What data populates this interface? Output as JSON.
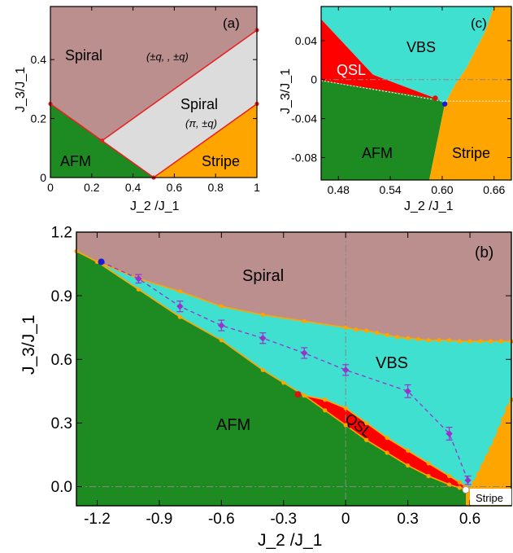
{
  "colors": {
    "spiral": "#bc8f8f",
    "spiral_pi": "#dcdcdc",
    "afm": "#1e8b22",
    "stripe": "#ffa500",
    "vbs": "#40e0d0",
    "qsl": "#ff0000",
    "boundary": "#ffa500",
    "boundary_a": "#e82020",
    "dashed_line": "#9932cc",
    "blue_point": "#1a1adc",
    "red_point": "#e01010",
    "guide": "#888888"
  },
  "chart_data": [
    {
      "panel": "(a)",
      "type": "area",
      "xlabel": "J_2 /J_1",
      "ylabel": "J_3/J_1",
      "xlim": [
        0,
        1
      ],
      "ylim": [
        0,
        0.58
      ],
      "xticks": [
        0,
        0.2,
        0.4,
        0.6,
        0.8,
        1
      ],
      "xtick_labels": [
        "0",
        "0.2",
        "0.4",
        "0.6",
        "0.8",
        "1"
      ],
      "yticks": [
        0,
        0.2,
        0.4
      ],
      "ytick_labels": [
        "0",
        "0.2",
        "0.4"
      ],
      "regions": [
        {
          "name": "spiral",
          "label": "Spiral",
          "sub": "(±q, , ±q)",
          "color_key": "spiral",
          "polygon": [
            [
              0,
              0.58
            ],
            [
              1,
              0.58
            ],
            [
              1,
              0.5
            ],
            [
              0.25,
              0.125
            ],
            [
              0,
              0.25
            ]
          ]
        },
        {
          "name": "spiral-pi",
          "label": "Spiral",
          "sub": "(π, ±q)",
          "color_key": "spiral_pi",
          "polygon": [
            [
              0.25,
              0.125
            ],
            [
              1,
              0.5
            ],
            [
              1,
              0.25
            ],
            [
              0.5,
              0
            ]
          ]
        },
        {
          "name": "afm",
          "label": "AFM",
          "color_key": "afm",
          "polygon": [
            [
              0,
              0
            ],
            [
              0.5,
              0
            ],
            [
              0.25,
              0.125
            ],
            [
              0,
              0.25
            ]
          ]
        },
        {
          "name": "stripe",
          "label": "Stripe",
          "color_key": "stripe",
          "polygon": [
            [
              0.5,
              0
            ],
            [
              1,
              0
            ],
            [
              1,
              0.25
            ]
          ]
        }
      ],
      "boundaries": [
        {
          "x": [
            0,
            0.25,
            1
          ],
          "y": [
            0.25,
            0.125,
            0.5
          ]
        },
        {
          "x": [
            0.25,
            0.5,
            1
          ],
          "y": [
            0.125,
            0,
            0.25
          ]
        }
      ],
      "points": [
        {
          "x": 0,
          "y": 0.25
        },
        {
          "x": 0.25,
          "y": 0.125
        },
        {
          "x": 0.5,
          "y": 0
        },
        {
          "x": 1,
          "y": 0.5
        },
        {
          "x": 1,
          "y": 0.25
        }
      ]
    },
    {
      "panel": "(c)",
      "type": "area",
      "xlabel": "J_2 /J_1",
      "ylabel": "J_3/J_1",
      "xlim": [
        0.46,
        0.68
      ],
      "ylim": [
        -0.103,
        0.075
      ],
      "xticks": [
        0.48,
        0.54,
        0.6,
        0.66
      ],
      "xtick_labels": [
        "0.48",
        "0.54",
        "0.60",
        "0.66"
      ],
      "yticks": [
        0.04,
        0,
        -0.04,
        -0.08
      ],
      "ytick_labels": [
        "0.04",
        "0",
        "-0.04",
        "-0.08"
      ],
      "regions": [
        {
          "name": "vbs",
          "label": "VBS",
          "color_key": "vbs",
          "polygon": [
            [
              0.46,
              0.075
            ],
            [
              0.66,
              0.075
            ],
            [
              0.65,
              0.05
            ],
            [
              0.628,
              0.012
            ],
            [
              0.615,
              -0.005
            ],
            [
              0.603,
              -0.025
            ],
            [
              0.595,
              -0.02
            ],
            [
              0.58,
              -0.015
            ],
            [
              0.52,
              0.005
            ],
            [
              0.46,
              0.062
            ]
          ]
        },
        {
          "name": "qsl",
          "label": "QSL",
          "color_key": "qsl",
          "polygon": [
            [
              0.46,
              0.062
            ],
            [
              0.52,
              0.005
            ],
            [
              0.58,
              -0.015
            ],
            [
              0.595,
              -0.02
            ],
            [
              0.46,
              -0.001
            ]
          ]
        },
        {
          "name": "afm",
          "label": "AFM",
          "color_key": "afm",
          "polygon": [
            [
              0.46,
              -0.001
            ],
            [
              0.595,
              -0.02
            ],
            [
              0.603,
              -0.025
            ],
            [
              0.585,
              -0.103
            ],
            [
              0.46,
              -0.103
            ]
          ]
        },
        {
          "name": "stripe",
          "label": "Stripe",
          "color_key": "stripe",
          "polygon": [
            [
              0.603,
              -0.025
            ],
            [
              0.615,
              -0.005
            ],
            [
              0.628,
              0.012
            ],
            [
              0.65,
              0.05
            ],
            [
              0.66,
              0.075
            ],
            [
              0.68,
              0.075
            ],
            [
              0.68,
              -0.103
            ],
            [
              0.585,
              -0.103
            ]
          ]
        }
      ],
      "dashed_x": [
        0.46,
        0.6,
        0.68
      ],
      "dashed_y": [
        -0.001,
        -0.022,
        -0.022
      ],
      "points": [
        {
          "x": 0.592,
          "y": -0.019,
          "color_key": "red_point"
        },
        {
          "x": 0.603,
          "y": -0.025,
          "color_key": "blue_point"
        }
      ],
      "guide_y": 0
    },
    {
      "panel": "(b)",
      "type": "area",
      "xlabel": "J_2 /J_1",
      "ylabel": "J_3/J_1",
      "xlim": [
        -1.3,
        0.8
      ],
      "ylim": [
        -0.09,
        1.2
      ],
      "xticks": [
        -1.2,
        -0.9,
        -0.6,
        -0.3,
        0,
        0.3,
        0.6
      ],
      "xtick_labels": [
        "-1.2",
        "-0.9",
        "-0.6",
        "-0.3",
        "0",
        "0.3",
        "0.6"
      ],
      "yticks": [
        0,
        0.3,
        0.6,
        0.9,
        1.2
      ],
      "ytick_labels": [
        "0.0",
        "0.3",
        "0.6",
        "0.9",
        "1.2"
      ],
      "regions": [
        {
          "name": "spiral",
          "label": "Spiral",
          "color_key": "spiral"
        },
        {
          "name": "vbs",
          "label": "VBS",
          "color_key": "vbs"
        },
        {
          "name": "afm",
          "label": "AFM",
          "color_key": "afm"
        },
        {
          "name": "qsl",
          "label": "QSL",
          "color_key": "qsl"
        },
        {
          "name": "stripe",
          "label": "Stripe",
          "color_key": "stripe"
        }
      ],
      "spiral_vbs_boundary": {
        "x": [
          -1.2,
          -1.0,
          -0.8,
          -0.6,
          -0.4,
          -0.2,
          0.0,
          0.05,
          0.1,
          0.15,
          0.2,
          0.25,
          0.3,
          0.35,
          0.4,
          0.45,
          0.5,
          0.55,
          0.6,
          0.65,
          0.7,
          0.75,
          0.8
        ],
        "y": [
          1.06,
          0.98,
          0.92,
          0.85,
          0.81,
          0.78,
          0.75,
          0.74,
          0.735,
          0.725,
          0.715,
          0.705,
          0.7,
          0.695,
          0.69,
          0.69,
          0.69,
          0.685,
          0.685,
          0.685,
          0.685,
          0.685,
          0.685
        ]
      },
      "afm_upper_boundary": {
        "x": [
          -1.3,
          -1.2,
          -1.0,
          -0.8,
          -0.6,
          -0.4,
          -0.3,
          -0.2
        ],
        "y": [
          1.11,
          1.06,
          0.93,
          0.8,
          0.69,
          0.55,
          0.49,
          0.43
        ]
      },
      "qsl_upper": {
        "x": [
          -0.2,
          -0.1,
          0.0,
          0.1,
          0.2,
          0.3,
          0.4,
          0.5,
          0.55,
          0.58
        ],
        "y": [
          0.43,
          0.41,
          0.37,
          0.3,
          0.23,
          0.17,
          0.11,
          0.05,
          0.02,
          0.0
        ]
      },
      "qsl_lower": {
        "x": [
          -0.2,
          -0.1,
          0.0,
          0.1,
          0.2,
          0.3,
          0.4,
          0.5,
          0.55,
          0.58
        ],
        "y": [
          0.43,
          0.36,
          0.29,
          0.22,
          0.16,
          0.1,
          0.05,
          0.01,
          -0.005,
          -0.01
        ]
      },
      "stripe_boundary": {
        "x": [
          0.58,
          0.6,
          0.62,
          0.64,
          0.66,
          0.68,
          0.7,
          0.72,
          0.74,
          0.76,
          0.78,
          0.8
        ],
        "y": [
          -0.01,
          -0.01,
          0.02,
          0.06,
          0.1,
          0.14,
          0.18,
          0.22,
          0.27,
          0.32,
          0.37,
          0.41
        ]
      },
      "dashed_series": {
        "x": [
          -1.18,
          -1.0,
          -0.8,
          -0.6,
          -0.4,
          -0.2,
          0.0,
          0.3,
          0.5,
          0.59
        ],
        "y": [
          1.06,
          0.98,
          0.85,
          0.76,
          0.7,
          0.63,
          0.55,
          0.45,
          0.25,
          0.03
        ],
        "err": [
          0,
          0.02,
          0.025,
          0.025,
          0.025,
          0.025,
          0.025,
          0.03,
          0.03,
          0.02
        ]
      },
      "points": [
        {
          "x": -1.18,
          "y": 1.06,
          "color_key": "blue_point"
        },
        {
          "x": -0.23,
          "y": 0.435,
          "color_key": "red_point"
        },
        {
          "x": 0.58,
          "y": -0.015,
          "color_key": "white"
        }
      ],
      "guide_x": 0,
      "guide_y": 0
    }
  ]
}
